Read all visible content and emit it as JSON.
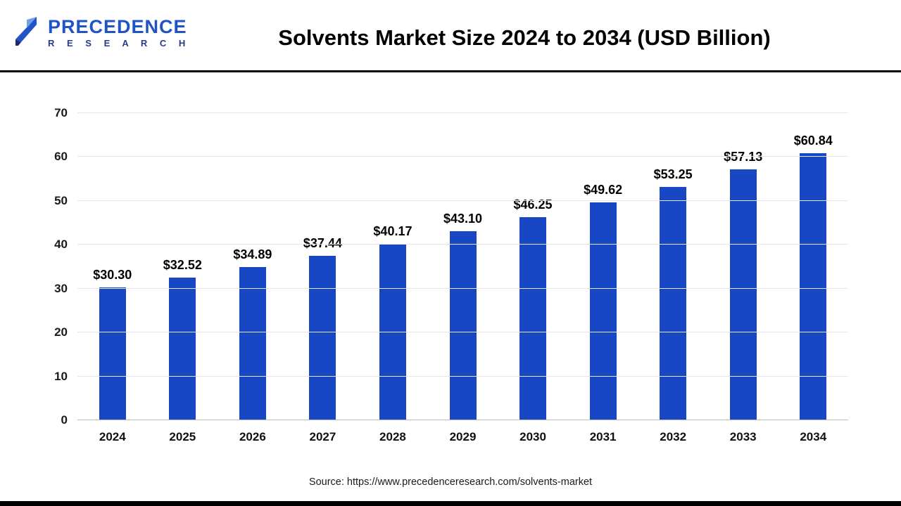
{
  "header": {
    "logo": {
      "line1": "PRECEDENCE",
      "line2": "R E S E A R C H"
    }
  },
  "footer": {
    "source": "Source: https://www.precedenceresearch.com/solvents-market"
  },
  "chart_data": {
    "type": "bar",
    "title": "Solvents Market Size 2024 to 2034 (USD Billion)",
    "categories": [
      "2024",
      "2025",
      "2026",
      "2027",
      "2028",
      "2029",
      "2030",
      "2031",
      "2032",
      "2033",
      "2034"
    ],
    "values": [
      30.3,
      32.52,
      34.89,
      37.44,
      40.17,
      43.1,
      46.25,
      49.62,
      53.25,
      57.13,
      60.84
    ],
    "value_labels": [
      "$30.30",
      "$32.52",
      "$34.89",
      "$37.44",
      "$40.17",
      "$43.10",
      "$46.25",
      "$49.62",
      "$53.25",
      "$57.13",
      "$60.84"
    ],
    "xlabel": "",
    "ylabel": "",
    "ylim": [
      0,
      70
    ],
    "yticks": [
      0,
      10,
      20,
      30,
      40,
      50,
      60,
      70
    ],
    "grid": true,
    "legend": false,
    "bar_color": "#1747c4",
    "value_unit": "USD Billion"
  }
}
